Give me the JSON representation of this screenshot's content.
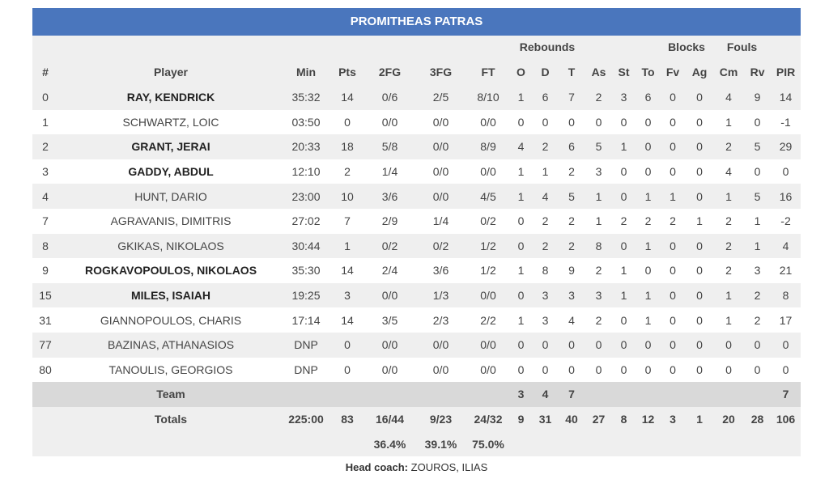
{
  "team_name": "PROMITHEAS PATRAS",
  "group_headers": {
    "rebounds": "Rebounds",
    "blocks": "Blocks",
    "fouls": "Fouls"
  },
  "columns": [
    "#",
    "Player",
    "Min",
    "Pts",
    "2FG",
    "3FG",
    "FT",
    "O",
    "D",
    "T",
    "As",
    "St",
    "To",
    "Fv",
    "Ag",
    "Cm",
    "Rv",
    "PIR"
  ],
  "players": [
    {
      "num": "0",
      "name": "RAY, KENDRICK",
      "starter": true,
      "min": "35:32",
      "pts": "14",
      "fg2": "0/6",
      "fg3": "2/5",
      "ft": "8/10",
      "o": "1",
      "d": "6",
      "t": "7",
      "as": "2",
      "st": "3",
      "to": "6",
      "fv": "0",
      "ag": "0",
      "cm": "4",
      "rv": "9",
      "pir": "14"
    },
    {
      "num": "1",
      "name": "SCHWARTZ, LOIC",
      "starter": false,
      "min": "03:50",
      "pts": "0",
      "fg2": "0/0",
      "fg3": "0/0",
      "ft": "0/0",
      "o": "0",
      "d": "0",
      "t": "0",
      "as": "0",
      "st": "0",
      "to": "0",
      "fv": "0",
      "ag": "0",
      "cm": "1",
      "rv": "0",
      "pir": "-1"
    },
    {
      "num": "2",
      "name": "GRANT, JERAI",
      "starter": true,
      "min": "20:33",
      "pts": "18",
      "fg2": "5/8",
      "fg3": "0/0",
      "ft": "8/9",
      "o": "4",
      "d": "2",
      "t": "6",
      "as": "5",
      "st": "1",
      "to": "0",
      "fv": "0",
      "ag": "0",
      "cm": "2",
      "rv": "5",
      "pir": "29"
    },
    {
      "num": "3",
      "name": "GADDY, ABDUL",
      "starter": true,
      "min": "12:10",
      "pts": "2",
      "fg2": "1/4",
      "fg3": "0/0",
      "ft": "0/0",
      "o": "1",
      "d": "1",
      "t": "2",
      "as": "3",
      "st": "0",
      "to": "0",
      "fv": "0",
      "ag": "0",
      "cm": "4",
      "rv": "0",
      "pir": "0"
    },
    {
      "num": "4",
      "name": "HUNT, DARIO",
      "starter": false,
      "min": "23:00",
      "pts": "10",
      "fg2": "3/6",
      "fg3": "0/0",
      "ft": "4/5",
      "o": "1",
      "d": "4",
      "t": "5",
      "as": "1",
      "st": "0",
      "to": "1",
      "fv": "1",
      "ag": "0",
      "cm": "1",
      "rv": "5",
      "pir": "16"
    },
    {
      "num": "7",
      "name": "AGRAVANIS, DIMITRIS",
      "starter": false,
      "min": "27:02",
      "pts": "7",
      "fg2": "2/9",
      "fg3": "1/4",
      "ft": "0/2",
      "o": "0",
      "d": "2",
      "t": "2",
      "as": "1",
      "st": "2",
      "to": "2",
      "fv": "2",
      "ag": "1",
      "cm": "2",
      "rv": "1",
      "pir": "-2"
    },
    {
      "num": "8",
      "name": "GKIKAS, NIKOLAOS",
      "starter": false,
      "min": "30:44",
      "pts": "1",
      "fg2": "0/2",
      "fg3": "0/2",
      "ft": "1/2",
      "o": "0",
      "d": "2",
      "t": "2",
      "as": "8",
      "st": "0",
      "to": "1",
      "fv": "0",
      "ag": "0",
      "cm": "2",
      "rv": "1",
      "pir": "4"
    },
    {
      "num": "9",
      "name": "ROGKAVOPOULOS, NIKOLAOS",
      "starter": true,
      "min": "35:30",
      "pts": "14",
      "fg2": "2/4",
      "fg3": "3/6",
      "ft": "1/2",
      "o": "1",
      "d": "8",
      "t": "9",
      "as": "2",
      "st": "1",
      "to": "0",
      "fv": "0",
      "ag": "0",
      "cm": "2",
      "rv": "3",
      "pir": "21"
    },
    {
      "num": "15",
      "name": "MILES, ISAIAH",
      "starter": true,
      "min": "19:25",
      "pts": "3",
      "fg2": "0/0",
      "fg3": "1/3",
      "ft": "0/0",
      "o": "0",
      "d": "3",
      "t": "3",
      "as": "3",
      "st": "1",
      "to": "1",
      "fv": "0",
      "ag": "0",
      "cm": "1",
      "rv": "2",
      "pir": "8"
    },
    {
      "num": "31",
      "name": "GIANNOPOULOS, CHARIS",
      "starter": false,
      "min": "17:14",
      "pts": "14",
      "fg2": "3/5",
      "fg3": "2/3",
      "ft": "2/2",
      "o": "1",
      "d": "3",
      "t": "4",
      "as": "2",
      "st": "0",
      "to": "1",
      "fv": "0",
      "ag": "0",
      "cm": "1",
      "rv": "2",
      "pir": "17"
    },
    {
      "num": "77",
      "name": "BAZINAS, ATHANASIOS",
      "starter": false,
      "min": "DNP",
      "pts": "0",
      "fg2": "0/0",
      "fg3": "0/0",
      "ft": "0/0",
      "o": "0",
      "d": "0",
      "t": "0",
      "as": "0",
      "st": "0",
      "to": "0",
      "fv": "0",
      "ag": "0",
      "cm": "0",
      "rv": "0",
      "pir": "0"
    },
    {
      "num": "80",
      "name": "TANOULIS, GEORGIOS",
      "starter": false,
      "min": "DNP",
      "pts": "0",
      "fg2": "0/0",
      "fg3": "0/0",
      "ft": "0/0",
      "o": "0",
      "d": "0",
      "t": "0",
      "as": "0",
      "st": "0",
      "to": "0",
      "fv": "0",
      "ag": "0",
      "cm": "0",
      "rv": "0",
      "pir": "0"
    }
  ],
  "team_row": {
    "label": "Team",
    "o": "3",
    "d": "4",
    "t": "7",
    "pir": "7"
  },
  "totals": {
    "label": "Totals",
    "min": "225:00",
    "pts": "83",
    "fg2": "16/44",
    "fg3": "9/23",
    "ft": "24/32",
    "o": "9",
    "d": "31",
    "t": "40",
    "as": "27",
    "st": "8",
    "to": "12",
    "fv": "3",
    "ag": "1",
    "cm": "20",
    "rv": "28",
    "pir": "106"
  },
  "percentages": {
    "fg2": "36.4%",
    "fg3": "39.1%",
    "ft": "75.0%"
  },
  "coach": {
    "label": "Head coach:",
    "name": "ZOUROS, ILIAS"
  },
  "colors": {
    "header_bg": "#4a76bd",
    "row_shade": "#efefef",
    "team_row_bg": "#d9d9d9"
  }
}
